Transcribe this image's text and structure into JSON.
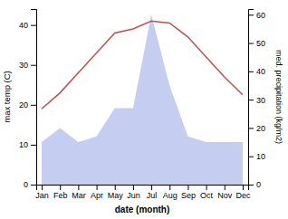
{
  "chart_data": {
    "type": "line",
    "categories": [
      "Jan",
      "Feb",
      "Mar",
      "Apr",
      "May",
      "Jun",
      "Jul",
      "Aug",
      "Sep",
      "Oct",
      "Nov",
      "Dec"
    ],
    "xlabel": "date (month)",
    "ylabel": "max temp (C)",
    "y2label": "med. precipitation (kg/m2)",
    "ylim": [
      0,
      44
    ],
    "yticks": [
      0,
      10,
      20,
      30,
      40
    ],
    "y2lim": [
      0,
      62
    ],
    "y2ticks": [
      0,
      10,
      20,
      30,
      40,
      50,
      60
    ],
    "grid": false,
    "series": [
      {
        "type": "area",
        "axis": "y2",
        "color": "#c5cdf0",
        "values": [
          15,
          20,
          15,
          17,
          27,
          27,
          60,
          35,
          17,
          15,
          15,
          15
        ]
      },
      {
        "type": "line",
        "color": "#c0504d",
        "values": [
          19,
          23,
          28,
          33,
          38,
          39,
          41,
          40.5,
          37,
          32,
          27,
          22.5
        ]
      }
    ]
  }
}
